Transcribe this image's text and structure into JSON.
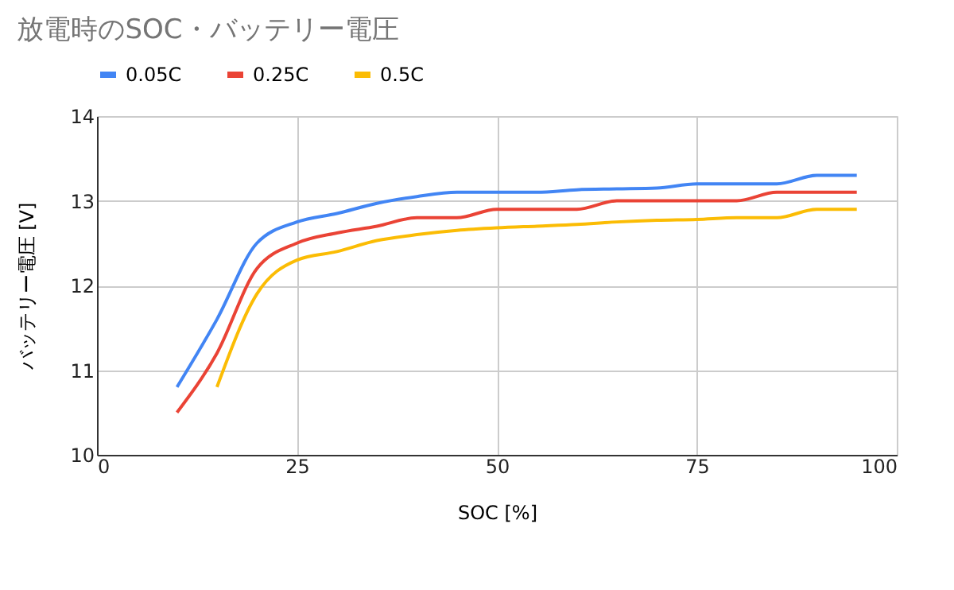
{
  "chart_data": {
    "type": "line",
    "title": "放電時のSOC・バッテリー電圧",
    "xlabel": "SOC [%]",
    "ylabel": "バッテリー電圧 [V]",
    "xlim": [
      0,
      100
    ],
    "xticks": [
      0,
      25,
      50,
      75,
      100
    ],
    "ylim": [
      10,
      14
    ],
    "yticks": [
      10,
      11,
      12,
      13,
      14
    ],
    "grid": true,
    "legend": "top",
    "marker": "none",
    "line_style": "solid",
    "series": [
      {
        "name": "0.05C",
        "color": "#4285f4",
        "x": [
          10,
          15,
          20,
          25,
          30,
          35,
          40,
          45,
          50,
          55,
          60,
          65,
          70,
          75,
          80,
          85,
          90,
          95
        ],
        "values": [
          10.8,
          11.6,
          12.5,
          12.75,
          12.85,
          12.97,
          13.05,
          13.1,
          13.1,
          13.1,
          13.13,
          13.14,
          13.15,
          13.2,
          13.2,
          13.2,
          13.3,
          13.3
        ]
      },
      {
        "name": "0.25C",
        "color": "#ea4335",
        "x": [
          10,
          15,
          20,
          25,
          30,
          35,
          40,
          45,
          50,
          55,
          60,
          65,
          70,
          75,
          80,
          85,
          90,
          95
        ],
        "values": [
          10.5,
          11.2,
          12.2,
          12.5,
          12.62,
          12.7,
          12.8,
          12.8,
          12.9,
          12.9,
          12.9,
          13.0,
          13.0,
          13.0,
          13.0,
          13.1,
          13.1,
          13.1
        ]
      },
      {
        "name": "0.5C",
        "color": "#fbbc04",
        "x": [
          15,
          20,
          25,
          30,
          35,
          40,
          45,
          50,
          55,
          60,
          65,
          70,
          75,
          80,
          85,
          90,
          95
        ],
        "values": [
          10.8,
          11.9,
          12.3,
          12.4,
          12.53,
          12.6,
          12.65,
          12.68,
          12.7,
          12.72,
          12.75,
          12.77,
          12.78,
          12.8,
          12.8,
          12.9,
          12.9
        ]
      }
    ]
  }
}
